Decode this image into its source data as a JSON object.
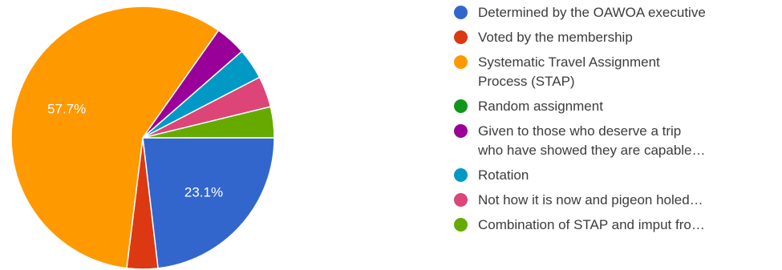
{
  "chart_data": {
    "type": "pie",
    "slices": [
      {
        "label": "Determined by the OAWOA executive",
        "value": 23.1,
        "color": "#3366cc",
        "display": "23.1%"
      },
      {
        "label": "Voted by the membership",
        "value": 3.8,
        "color": "#dc3912",
        "display": ""
      },
      {
        "label": "Systematic Travel Assignment Process (STAP)",
        "value": 57.7,
        "color": "#ff9900",
        "display": "57.7%"
      },
      {
        "label": "Random assignment",
        "value": 0,
        "color": "#109618",
        "display": ""
      },
      {
        "label": "Given to those who deserve a trip who have showed they are capable…",
        "value": 3.8,
        "color": "#990099",
        "display": ""
      },
      {
        "label": "Rotation",
        "value": 3.8,
        "color": "#0099c6",
        "display": ""
      },
      {
        "label": "Not how it is now and pigeon holed…",
        "value": 3.8,
        "color": "#dd4477",
        "display": ""
      },
      {
        "label": "Combination of STAP and imput fro…",
        "value": 3.8,
        "color": "#66aa00",
        "display": ""
      }
    ],
    "legend_position": "right"
  },
  "legend": {
    "items": [
      {
        "lines": [
          "Determined by the OAWOA executive"
        ],
        "color": "#3366cc"
      },
      {
        "lines": [
          "Voted by the membership"
        ],
        "color": "#dc3912"
      },
      {
        "lines": [
          "Systematic Travel Assignment",
          "Process (STAP)"
        ],
        "color": "#ff9900"
      },
      {
        "lines": [
          "Random assignment"
        ],
        "color": "#109618"
      },
      {
        "lines": [
          "Given to those who deserve a trip",
          "who have showed they are capable…"
        ],
        "color": "#990099"
      },
      {
        "lines": [
          "Rotation"
        ],
        "color": "#0099c6"
      },
      {
        "lines": [
          "Not how it is now and pigeon holed…"
        ],
        "color": "#dd4477"
      },
      {
        "lines": [
          "Combination of STAP and imput fro…"
        ],
        "color": "#66aa00"
      }
    ]
  }
}
